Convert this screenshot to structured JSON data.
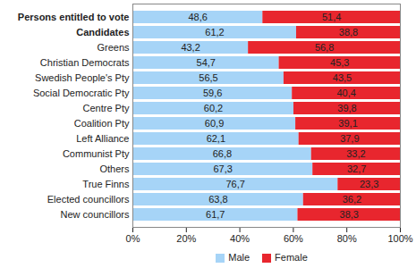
{
  "chart_data": {
    "type": "bar",
    "orientation": "horizontal",
    "stacked": true,
    "data_labels": true,
    "legend": "bottom",
    "categories": [
      "Persons entitled to vote",
      "Candidates",
      "Greens",
      "Christian Democrats",
      "Swedish People's Pty",
      "Social Democratic Pty",
      "Centre Pty",
      "Coalition Pty",
      "Left Alliance",
      "Communist Pty",
      "Others",
      "True Finns",
      "Elected councillors",
      "New councillors"
    ],
    "series": [
      {
        "name": "Male",
        "color": "#a6d4f7",
        "values": [
          48.6,
          61.2,
          43.2,
          54.7,
          56.5,
          59.6,
          60.2,
          60.9,
          62.1,
          66.8,
          67.3,
          76.7,
          63.8,
          61.7
        ],
        "value_labels": [
          "48,6",
          "61,2",
          "43,2",
          "54,7",
          "56,5",
          "59,6",
          "60,2",
          "60,9",
          "62,1",
          "66,8",
          "67,3",
          "76,7",
          "63,8",
          "61,7"
        ]
      },
      {
        "name": "Female",
        "color": "#e8262e",
        "values": [
          51.4,
          38.8,
          56.8,
          45.3,
          43.5,
          40.4,
          39.8,
          39.1,
          37.9,
          33.2,
          32.7,
          23.3,
          36.2,
          38.3
        ],
        "value_labels": [
          "51,4",
          "38,8",
          "56,8",
          "45,3",
          "43,5",
          "40,4",
          "39,8",
          "39,1",
          "37,9",
          "33,2",
          "32,7",
          "23,3",
          "36,2",
          "38,3"
        ]
      }
    ],
    "xlim": [
      0,
      100
    ],
    "xticks": [
      {
        "value": 0,
        "label": "0%"
      },
      {
        "value": 20,
        "label": "20%"
      },
      {
        "value": 40,
        "label": "40%"
      },
      {
        "value": 60,
        "label": "60%"
      },
      {
        "value": 80,
        "label": "80%"
      },
      {
        "value": 100,
        "label": "100%"
      }
    ]
  }
}
